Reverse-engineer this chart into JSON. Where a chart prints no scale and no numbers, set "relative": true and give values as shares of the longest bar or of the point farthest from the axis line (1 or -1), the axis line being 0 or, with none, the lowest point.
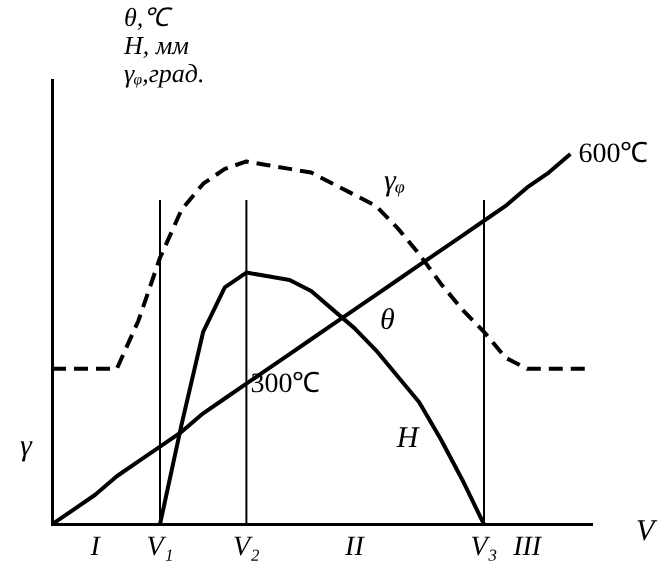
{
  "chart_data": {
    "type": "line",
    "relative": true,
    "ylabel": "θ,℃\nH, мм\nγᵩ,град.",
    "xlabel": "V",
    "categories": [
      null,
      null,
      "I",
      null,
      null,
      "V₁",
      null,
      null,
      null,
      "V₂",
      null,
      null,
      null,
      null,
      "II",
      null,
      null,
      null,
      null,
      null,
      "V₃",
      null,
      "III",
      null,
      null,
      null
    ],
    "series": [
      {
        "name": "θ",
        "color": "#000000",
        "line_style": "solid",
        "values": [
          0,
          0.04,
          0.08,
          0.13,
          0.17,
          0.21,
          0.25,
          0.3,
          0.34,
          0.38,
          0.42,
          0.46,
          0.5,
          0.54,
          0.58,
          0.62,
          0.66,
          0.7,
          0.74,
          0.78,
          0.82,
          0.86,
          0.91,
          0.95,
          1,
          null
        ]
      },
      {
        "name": "H",
        "color": "#000000",
        "line_style": "solid",
        "values": [
          null,
          null,
          null,
          null,
          null,
          0,
          0.27,
          0.52,
          0.64,
          0.68,
          0.67,
          0.66,
          0.63,
          0.58,
          0.53,
          0.47,
          0.4,
          0.33,
          0.23,
          0.12,
          0,
          null,
          null,
          null,
          null,
          null
        ]
      },
      {
        "name": "γᵩ",
        "color": "#000000",
        "line_style": "dashed",
        "values": [
          0.42,
          0.42,
          0.42,
          0.42,
          0.55,
          0.72,
          0.85,
          0.92,
          0.96,
          0.98,
          0.97,
          0.96,
          0.95,
          0.92,
          0.89,
          0.86,
          0.8,
          0.73,
          0.65,
          0.58,
          0.52,
          0.45,
          0.42,
          0.42,
          0.42,
          0.42
        ]
      }
    ],
    "ref_lines": [
      {
        "axis": "x",
        "value": "V₁"
      },
      {
        "axis": "x",
        "value": "V₂"
      },
      {
        "axis": "x",
        "value": "V₃"
      }
    ],
    "annotations": [
      {
        "text": "300℃",
        "x": "V₂",
        "y": 0.38
      },
      "600℃",
      "γ"
    ],
    "marker": "none",
    "grid": false,
    "legend": false
  }
}
